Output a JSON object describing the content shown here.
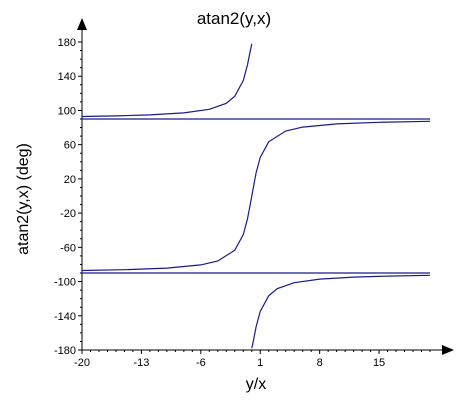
{
  "chart_data": {
    "type": "line",
    "title": "atan2(y,x)",
    "xlabel": "y/x",
    "ylabel": "atan2(y,x)  (deg)",
    "xlim": [
      -20,
      21
    ],
    "ylim": [
      -180,
      180
    ],
    "x_ticks": [
      -20,
      -13,
      -6,
      1,
      8,
      15
    ],
    "y_ticks": [
      180,
      140,
      100,
      60,
      20,
      -20,
      -60,
      -100,
      -140,
      -180
    ],
    "x_tick_labels": [
      "-20",
      "-13",
      "-6",
      "1",
      "8",
      "15"
    ],
    "y_tick_labels": [
      "180",
      "140",
      "100",
      "60",
      "20",
      "-20",
      "-60",
      "-100",
      "-140",
      "-180"
    ],
    "reference_lines_y": [
      90,
      -90
    ],
    "series": [
      {
        "x": [
          -20,
          -16,
          -12,
          -8,
          -5,
          -3,
          -2,
          -1,
          -0.5,
          -0.2,
          0
        ],
        "y": [
          92.9,
          93.6,
          94.8,
          97.1,
          101.3,
          108.4,
          116.6,
          135.0,
          153.4,
          168.7,
          178
        ]
      },
      {
        "x": [
          -20,
          -15,
          -10,
          -6,
          -4,
          -2,
          -1,
          -0.5,
          0,
          0.5,
          1,
          2,
          4,
          6,
          10,
          15,
          21
        ],
        "y": [
          -87.1,
          -86.2,
          -84.3,
          -80.5,
          -76.0,
          -63.4,
          -45.0,
          -26.6,
          0,
          26.6,
          45.0,
          63.4,
          76.0,
          80.5,
          84.3,
          86.2,
          87.3
        ]
      },
      {
        "x": [
          0,
          0.2,
          0.5,
          1,
          2,
          3,
          5,
          8,
          12,
          16,
          21
        ],
        "y": [
          -178,
          -168.7,
          -153.4,
          -135.0,
          -116.6,
          -108.4,
          -101.3,
          -97.1,
          -94.8,
          -93.6,
          -92.7
        ]
      }
    ],
    "grid": false,
    "legend": "none"
  }
}
